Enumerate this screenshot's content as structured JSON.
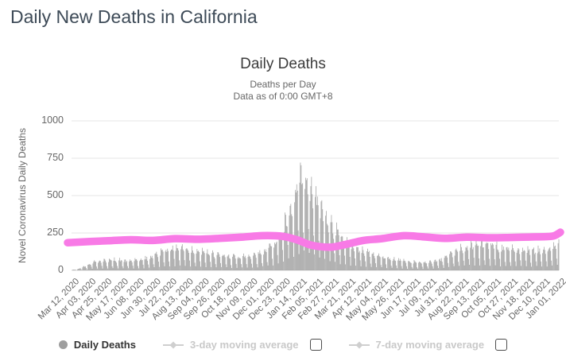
{
  "page": {
    "title": "Daily New Deaths in California"
  },
  "chart_data": {
    "type": "bar",
    "title": "Daily Deaths",
    "subtitle": [
      "Deaths per Day",
      "Data as of 0:00 GMT+8"
    ],
    "ylabel": "Novel Coronavirus Daily Deaths",
    "ylim": [
      0,
      1000
    ],
    "y_ticks": [
      0,
      250,
      500,
      750,
      1000
    ],
    "grid": "horizontal",
    "x_start_date": "Mar 12, 2020",
    "x_end_date": "Jan 01, 2022",
    "x_tick_interval_days": 22,
    "total_days": 661,
    "x_tick_labels": [
      "Mar 12, 2020",
      "Apr 03, 2020",
      "Apr 25, 2020",
      "May 17, 2020",
      "Jun 08, 2020",
      "Jun 30, 2020",
      "Jul 22, 2020",
      "Aug 13, 2020",
      "Sep 04, 2020",
      "Sep 26, 2020",
      "Oct 18, 2020",
      "Nov 09, 2020",
      "Dec 01, 2020",
      "Dec 23, 2020",
      "Jan 14, 2021",
      "Feb 05, 2021",
      "Feb 27, 2021",
      "Mar 21, 2021",
      "Apr 12, 2021",
      "May 04, 2021",
      "May 26, 2021",
      "Jun 17, 2021",
      "Jul 09, 2021",
      "Jul 31, 2021",
      "Aug 22, 2021",
      "Sep 13, 2021",
      "Oct 05, 2021",
      "Oct 27, 2021",
      "Nov 18, 2021",
      "Dec 10, 2021",
      "Jan 01, 2022"
    ],
    "bar_series": {
      "name": "Daily Deaths",
      "color": "#a1a1a1",
      "note": "daily bars reconstructed as envelope value x weekday factor x jitter",
      "envelope_keypoints_day_value": [
        [
          0,
          3
        ],
        [
          8,
          8
        ],
        [
          15,
          25
        ],
        [
          22,
          45
        ],
        [
          30,
          70
        ],
        [
          45,
          78
        ],
        [
          60,
          82
        ],
        [
          75,
          75
        ],
        [
          90,
          80
        ],
        [
          105,
          100
        ],
        [
          118,
          140
        ],
        [
          130,
          165
        ],
        [
          145,
          185
        ],
        [
          158,
          170
        ],
        [
          172,
          150
        ],
        [
          186,
          135
        ],
        [
          200,
          118
        ],
        [
          214,
          110
        ],
        [
          228,
          108
        ],
        [
          242,
          115
        ],
        [
          256,
          140
        ],
        [
          266,
          170
        ],
        [
          276,
          230
        ],
        [
          286,
          330
        ],
        [
          294,
          420
        ],
        [
          302,
          540
        ],
        [
          310,
          730
        ],
        [
          316,
          700
        ],
        [
          324,
          640
        ],
        [
          334,
          530
        ],
        [
          344,
          430
        ],
        [
          354,
          340
        ],
        [
          364,
          275
        ],
        [
          374,
          225
        ],
        [
          388,
          170
        ],
        [
          402,
          140
        ],
        [
          416,
          115
        ],
        [
          430,
          95
        ],
        [
          444,
          82
        ],
        [
          458,
          68
        ],
        [
          472,
          62
        ],
        [
          486,
          68
        ],
        [
          500,
          85
        ],
        [
          512,
          120
        ],
        [
          524,
          160
        ],
        [
          536,
          190
        ],
        [
          548,
          205
        ],
        [
          560,
          205
        ],
        [
          572,
          195
        ],
        [
          584,
          180
        ],
        [
          596,
          168
        ],
        [
          608,
          158
        ],
        [
          620,
          152
        ],
        [
          632,
          155
        ],
        [
          644,
          160
        ],
        [
          652,
          175
        ],
        [
          658,
          210
        ],
        [
          660,
          228
        ]
      ],
      "weekday_factors": [
        0.18,
        0.85,
        1.0,
        0.93,
        0.88,
        0.78,
        0.4
      ],
      "noise": {
        "seed": 42,
        "min": 0.8,
        "range": 0.28
      },
      "max_bar_value": 750,
      "peak_value_approx": 748,
      "peak_date_approx": "Jan 16, 2021"
    },
    "overlay_line": {
      "name": "highlighted average line",
      "color": "#f87ae6",
      "stroke_width": 9.5,
      "points_day_value": [
        [
          0,
          185
        ],
        [
          25,
          193
        ],
        [
          50,
          198
        ],
        [
          80,
          205
        ],
        [
          110,
          200
        ],
        [
          140,
          212
        ],
        [
          170,
          208
        ],
        [
          200,
          214
        ],
        [
          230,
          222
        ],
        [
          258,
          232
        ],
        [
          285,
          228
        ],
        [
          305,
          205
        ],
        [
          325,
          168
        ],
        [
          350,
          155
        ],
        [
          370,
          172
        ],
        [
          395,
          200
        ],
        [
          420,
          212
        ],
        [
          450,
          232
        ],
        [
          475,
          225
        ],
        [
          505,
          214
        ],
        [
          535,
          222
        ],
        [
          565,
          218
        ],
        [
          595,
          220
        ],
        [
          620,
          223
        ],
        [
          645,
          226
        ],
        [
          654,
          232
        ],
        [
          660,
          255
        ]
      ]
    },
    "legend": [
      {
        "label": "Daily Deaths",
        "active": true
      },
      {
        "label": "3-day moving average",
        "active": false,
        "checkbox": true
      },
      {
        "label": "7-day moving average",
        "active": false,
        "checkbox": true
      }
    ]
  },
  "colors": {
    "bars": "#a1a1a1",
    "overlay_line": "#f87ae6",
    "gridline": "#e6e6e6",
    "baseline": "#d8d8d8",
    "axis_text": "#666666",
    "title_text": "#3d4a57",
    "legend_inactive": "#c9c9c9"
  }
}
